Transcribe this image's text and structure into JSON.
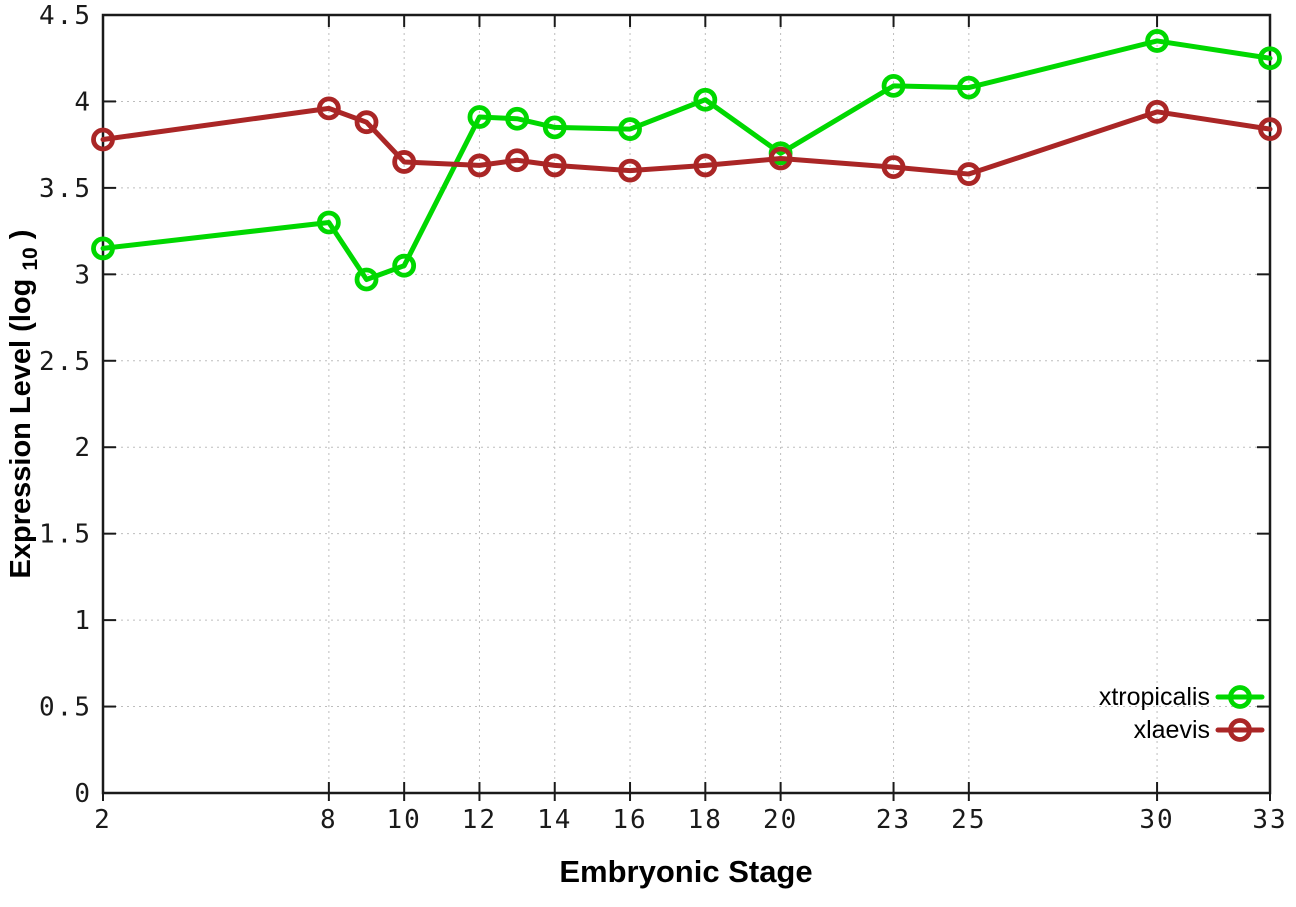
{
  "chart_data": {
    "type": "line",
    "title": "",
    "xlabel": "Embryonic Stage",
    "ylabel": "Expression Level (log10)",
    "ylabel_parts": {
      "pre": "Expression Level (log",
      "sub": "10",
      "post": ")"
    },
    "x_axis_name": "Embryonic Stage",
    "x": [
      2,
      8,
      9,
      10,
      12,
      13,
      14,
      16,
      18,
      20,
      23,
      25,
      30,
      33
    ],
    "series": [
      {
        "name": "xtropicalis",
        "color": "#00d800",
        "values": [
          3.15,
          3.3,
          2.97,
          3.05,
          3.91,
          3.9,
          3.85,
          3.84,
          4.01,
          3.7,
          4.09,
          4.08,
          4.35,
          4.25
        ]
      },
      {
        "name": "xlaevis",
        "color": "#aa2626",
        "values": [
          3.78,
          3.96,
          3.88,
          3.65,
          3.63,
          3.66,
          3.63,
          3.6,
          3.63,
          3.67,
          3.62,
          3.58,
          3.94,
          3.84
        ]
      }
    ],
    "xlim": [
      2,
      33
    ],
    "ylim": [
      0,
      4.5
    ],
    "xticks": [
      2,
      8,
      10,
      12,
      14,
      16,
      18,
      20,
      23,
      25,
      30,
      33
    ],
    "yticks": [
      0,
      0.5,
      1,
      1.5,
      2,
      2.5,
      3,
      3.5,
      4,
      4.5
    ],
    "grid": true,
    "grid_style": "dotted",
    "legend_position": "bottom-right",
    "legend_entries": [
      "xtropicalis",
      "xlaevis"
    ],
    "colors": {
      "background": "#ffffff",
      "border": "#1a1a1a",
      "grid": "#bdbdbd",
      "tick_text": "#1a1a1a",
      "title_text": "#000000"
    }
  }
}
